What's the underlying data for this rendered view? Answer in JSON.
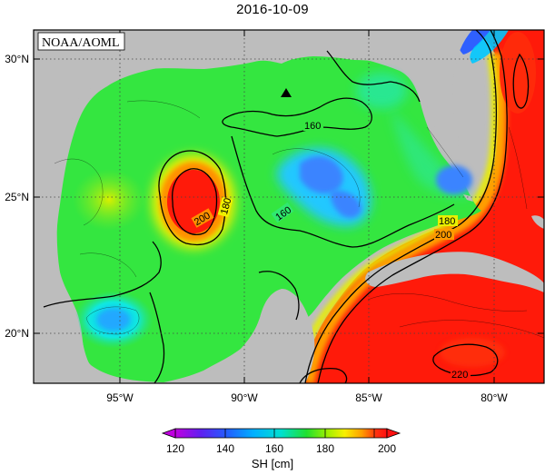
{
  "title": "2016-10-09",
  "credit": "NOAA/AOML",
  "axes": {
    "lat_labels": [
      "30°N",
      "25°N",
      "20°N"
    ],
    "lon_labels": [
      "95°W",
      "90°W",
      "85°W",
      "80°W"
    ]
  },
  "contour_labels": [
    "160",
    "160",
    "180",
    "200",
    "180",
    "200",
    "220"
  ],
  "colorbar": {
    "title": "SH [cm]",
    "ticks": [
      "120",
      "140",
      "160",
      "180",
      "200"
    ],
    "colors": [
      "#b000e0",
      "#5a30f0",
      "#2060ff",
      "#00a8ff",
      "#00e0e0",
      "#20e080",
      "#20e020",
      "#90f000",
      "#f0f000",
      "#ffb000",
      "#ff6000",
      "#ff1010"
    ]
  },
  "colors": {
    "land": "#bdbdbd",
    "ocean_base": "#34e640",
    "warm_current": "#ff1a0a",
    "grid": "#555555"
  }
}
